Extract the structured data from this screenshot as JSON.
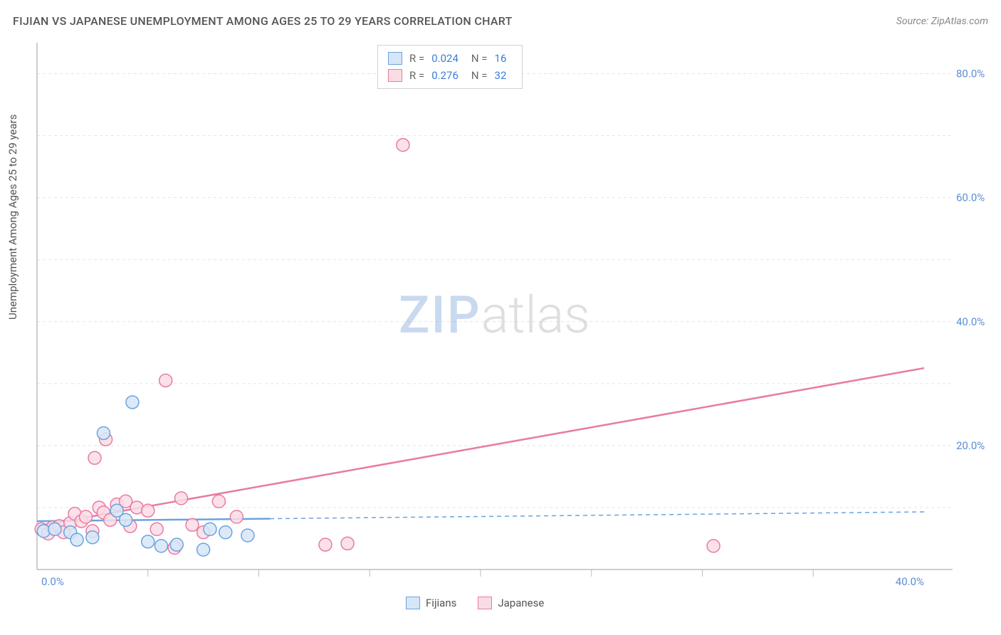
{
  "header": {
    "title": "FIJIAN VS JAPANESE UNEMPLOYMENT AMONG AGES 25 TO 29 YEARS CORRELATION CHART",
    "source": "Source: ZipAtlas.com"
  },
  "ylabel": "Unemployment Among Ages 25 to 29 years",
  "watermark": {
    "part1": "ZIP",
    "part2": "atlas"
  },
  "chart": {
    "type": "scatter",
    "xlim": [
      0,
      40
    ],
    "ylim": [
      0,
      85
    ],
    "xtick_labels": [
      "0.0%",
      "40.0%"
    ],
    "xtick_positions": [
      0,
      40
    ],
    "ytick_labels": [
      "20.0%",
      "40.0%",
      "60.0%",
      "80.0%"
    ],
    "ytick_positions": [
      20,
      40,
      60,
      80
    ],
    "xtick_minor": [
      5,
      10,
      15,
      20,
      25,
      30,
      35
    ],
    "ytick_hgrid": [
      10,
      20,
      30,
      40,
      50,
      60,
      70,
      80
    ],
    "background_color": "#ffffff",
    "grid_color": "#e4e4e4",
    "grid_dash": "4,4",
    "axis_color": "#bdbdbd",
    "marker_radius": 9,
    "marker_stroke_width": 1.5,
    "trend_line_width": 2.5,
    "series": {
      "fijians": {
        "label": "Fijians",
        "fill": "#d6e6f7",
        "stroke": "#6aa3e0",
        "R": "0.024",
        "N": "16",
        "points": [
          [
            0.3,
            6.2
          ],
          [
            0.8,
            6.5
          ],
          [
            1.5,
            6.0
          ],
          [
            1.8,
            4.8
          ],
          [
            2.5,
            5.2
          ],
          [
            3.0,
            22.0
          ],
          [
            3.6,
            9.5
          ],
          [
            4.0,
            8.0
          ],
          [
            4.3,
            27.0
          ],
          [
            5.0,
            4.5
          ],
          [
            5.6,
            3.8
          ],
          [
            6.3,
            4.0
          ],
          [
            7.5,
            3.2
          ],
          [
            7.8,
            6.5
          ],
          [
            8.5,
            6.0
          ],
          [
            9.5,
            5.5
          ]
        ],
        "trend": {
          "x1": 0,
          "y1": 7.8,
          "x2": 10.5,
          "y2": 8.2,
          "dash_x1": 10.5,
          "dash_y1": 8.2,
          "dash_x2": 40,
          "dash_y2": 9.3
        }
      },
      "japanese": {
        "label": "Japanese",
        "fill": "#fadce5",
        "stroke": "#e87ba3",
        "R": "0.276",
        "N": "32",
        "points": [
          [
            0.2,
            6.5
          ],
          [
            0.5,
            5.8
          ],
          [
            0.7,
            6.8
          ],
          [
            1.0,
            7.0
          ],
          [
            1.2,
            6.0
          ],
          [
            1.5,
            7.5
          ],
          [
            1.7,
            9.0
          ],
          [
            2.0,
            7.8
          ],
          [
            2.2,
            8.5
          ],
          [
            2.5,
            6.2
          ],
          [
            2.6,
            18.0
          ],
          [
            2.8,
            10.0
          ],
          [
            3.0,
            9.2
          ],
          [
            3.1,
            21.0
          ],
          [
            3.3,
            8.0
          ],
          [
            3.6,
            10.5
          ],
          [
            4.0,
            11.0
          ],
          [
            4.2,
            7.0
          ],
          [
            4.5,
            10.0
          ],
          [
            5.0,
            9.5
          ],
          [
            5.4,
            6.5
          ],
          [
            5.8,
            30.5
          ],
          [
            6.2,
            3.5
          ],
          [
            6.5,
            11.5
          ],
          [
            7.0,
            7.2
          ],
          [
            7.5,
            6.0
          ],
          [
            8.2,
            11.0
          ],
          [
            9.0,
            8.5
          ],
          [
            13.0,
            4.0
          ],
          [
            14.0,
            4.2
          ],
          [
            16.5,
            68.5
          ],
          [
            30.5,
            3.8
          ]
        ],
        "trend": {
          "x1": 0,
          "y1": 7.0,
          "x2": 40,
          "y2": 32.5
        }
      }
    }
  },
  "stats_box": {
    "rows": [
      {
        "swatch_fill": "#d6e6f7",
        "swatch_stroke": "#6aa3e0",
        "R": "0.024",
        "N": "16"
      },
      {
        "swatch_fill": "#fadce5",
        "swatch_stroke": "#e87ba3",
        "R": "0.276",
        "N": "32"
      }
    ]
  },
  "legend": {
    "items": [
      {
        "swatch_fill": "#d6e6f7",
        "swatch_stroke": "#6aa3e0",
        "label": "Fijians"
      },
      {
        "swatch_fill": "#fadce5",
        "swatch_stroke": "#e87ba3",
        "label": "Japanese"
      }
    ]
  }
}
